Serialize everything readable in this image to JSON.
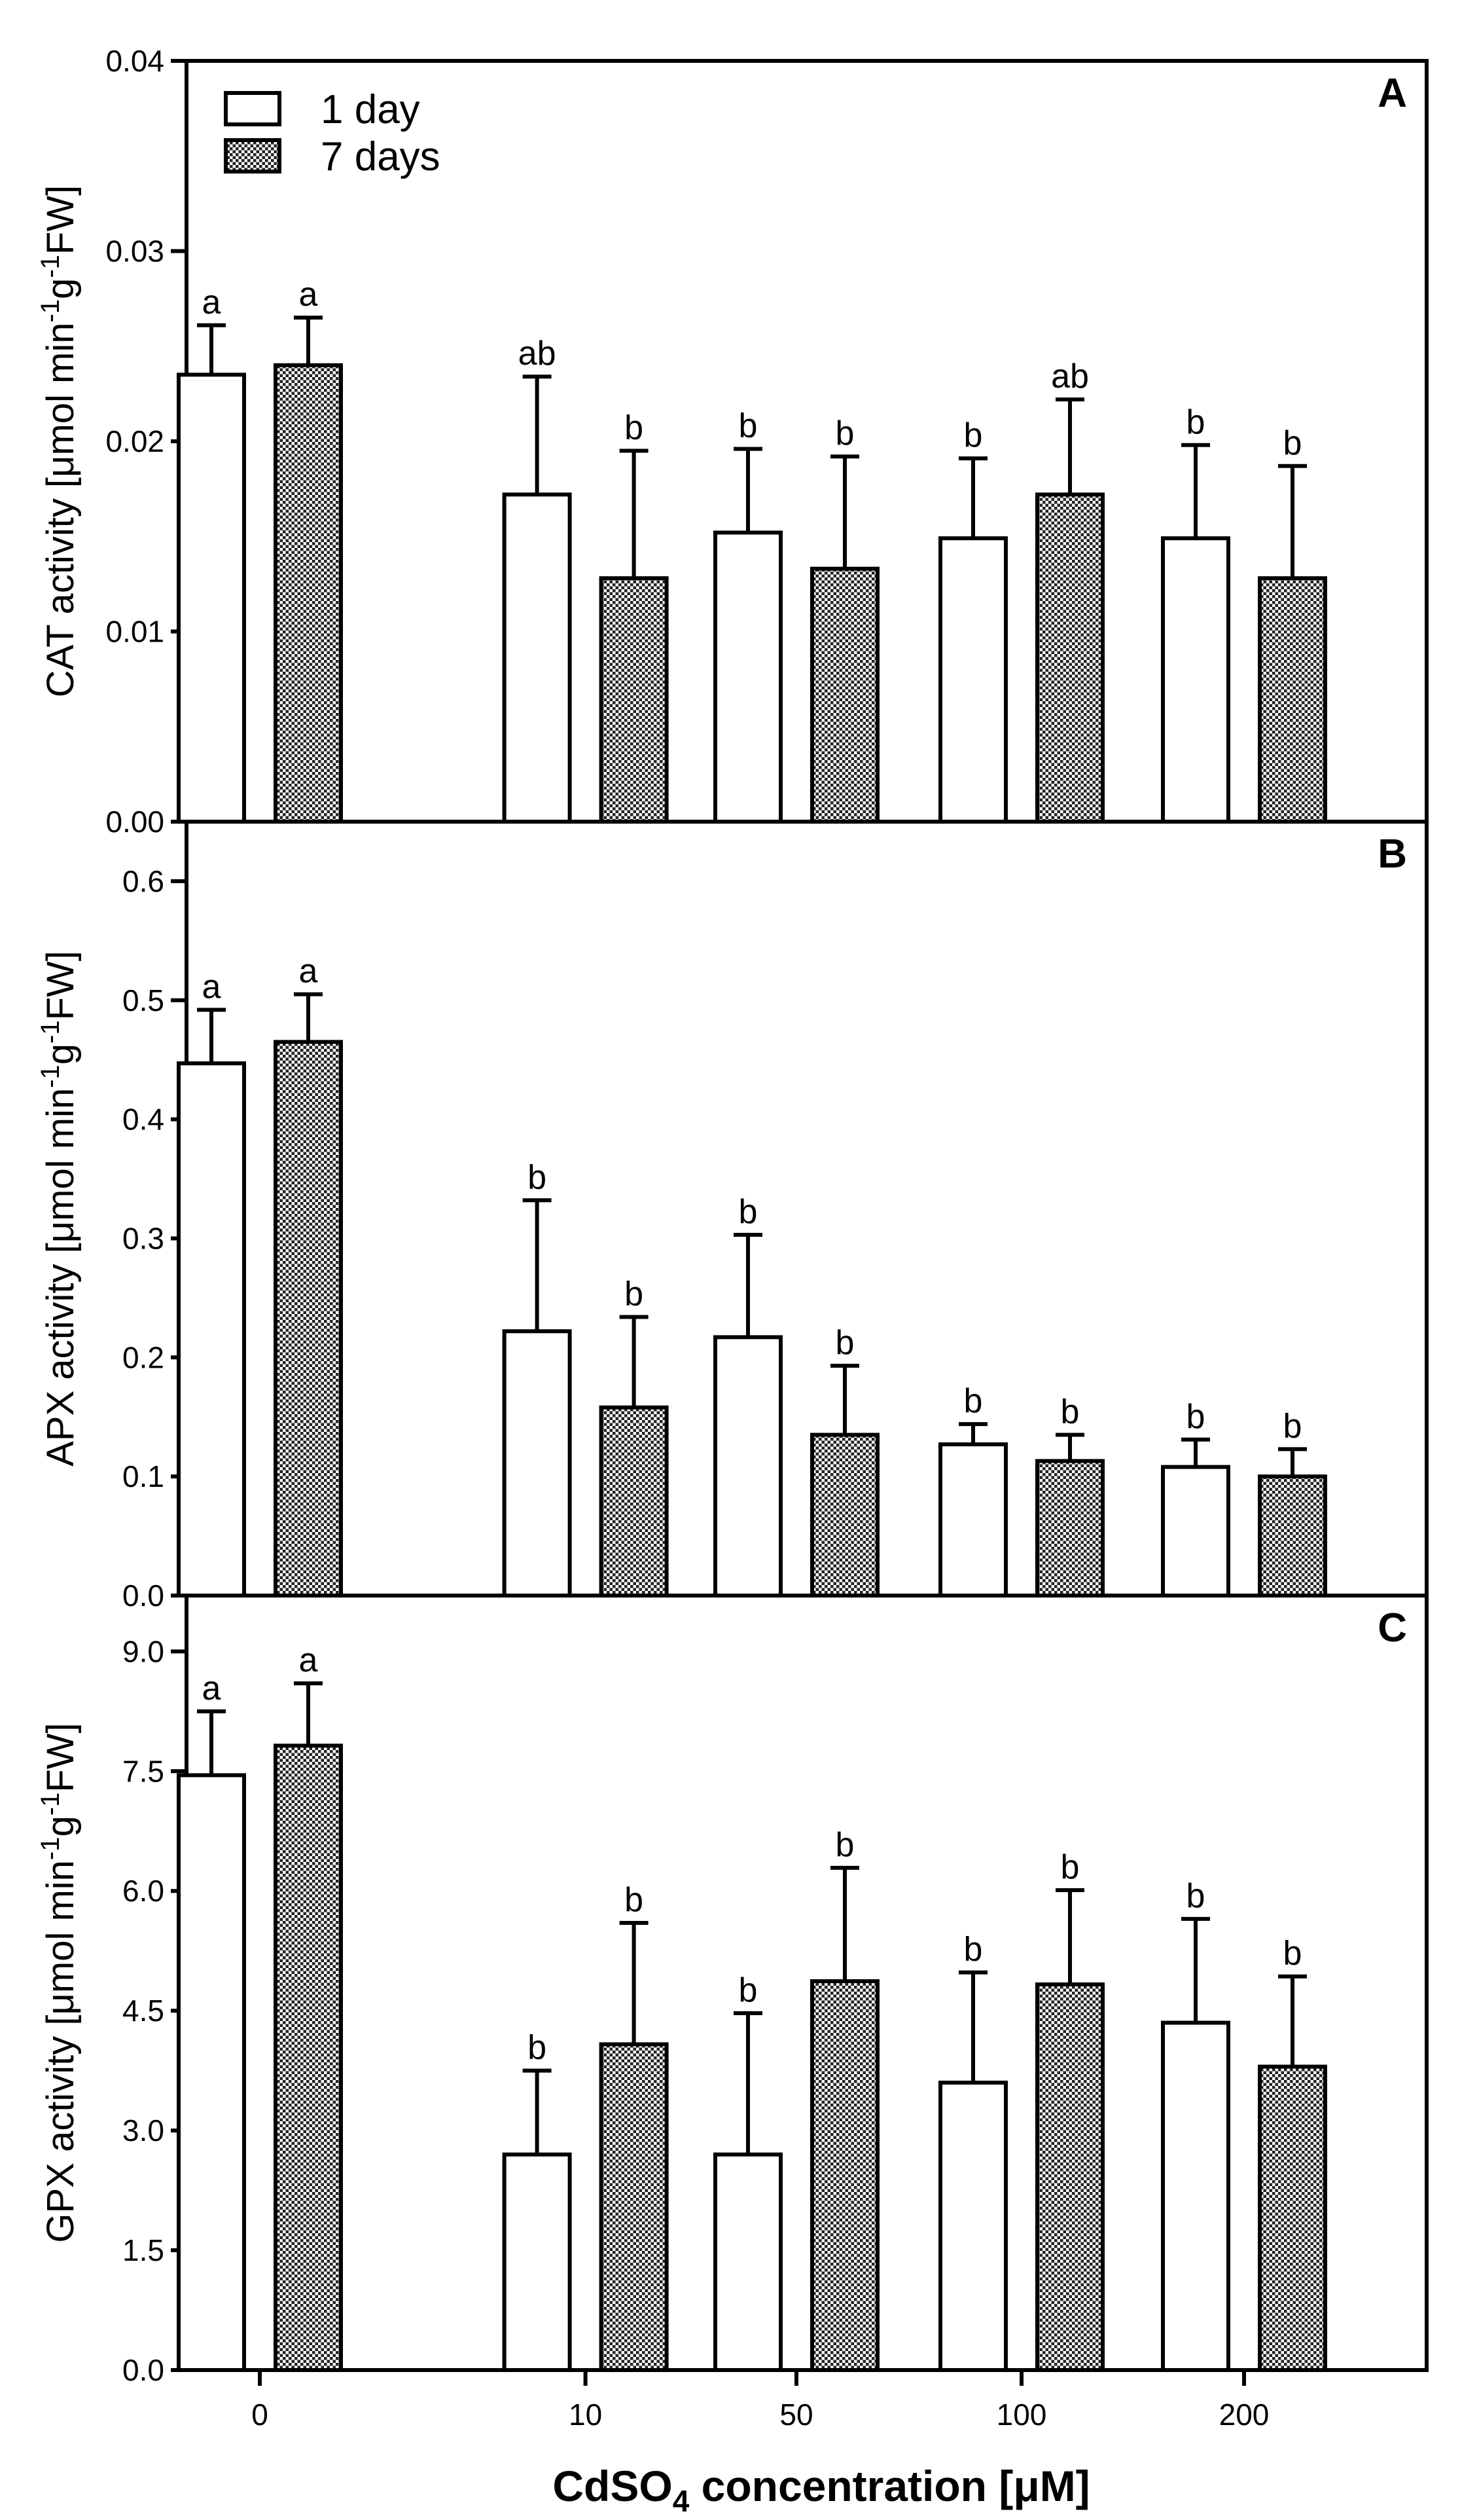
{
  "chart_data": {
    "type": "bar",
    "categories": [
      "0",
      "10",
      "50",
      "100",
      "200"
    ],
    "xlabel": "CdSO₄ concentration [μM]",
    "xlabel_parts": {
      "prefix": "CdSO",
      "sub": "4",
      "suffix": " concentration [μM]"
    },
    "legend": {
      "placement": "top-left",
      "entries": [
        "1 day",
        "7 days"
      ]
    },
    "series_styles": {
      "1 day": "white",
      "7 days": "checkered"
    },
    "grid": false,
    "panels": [
      {
        "letter": "A",
        "ylabel": "CAT activity [μmol min⁻¹g⁻¹FW]",
        "ylabel_parts": {
          "pre": "CAT activity [μmol min",
          "sup1": "-1",
          "mid": "g",
          "sup2": "-1",
          "post": "FW]"
        },
        "ylim": [
          0,
          0.04
        ],
        "yticks": [
          0.0,
          0.01,
          0.02,
          0.03,
          0.04
        ],
        "ytick_labels": [
          "0.00",
          "0.01",
          "0.02",
          "0.03",
          "0.04"
        ],
        "series": [
          {
            "name": "1 day",
            "values": [
              0.0235,
              0.0172,
              0.0152,
              0.0149,
              0.0149
            ],
            "errors": [
              0.0026,
              0.0062,
              0.0044,
              0.0042,
              0.0049
            ],
            "letters": [
              "a",
              "ab",
              "b",
              "b",
              "b"
            ]
          },
          {
            "name": "7 days",
            "values": [
              0.024,
              0.0128,
              0.0133,
              0.0172,
              0.0128
            ],
            "errors": [
              0.0025,
              0.0067,
              0.0059,
              0.005,
              0.0059
            ],
            "letters": [
              "a",
              "b",
              "b",
              "ab",
              "b"
            ]
          }
        ]
      },
      {
        "letter": "B",
        "ylabel": "APX activity [μmol min⁻¹g⁻¹FW]",
        "ylabel_parts": {
          "pre": "APX activity [μmol min",
          "sup1": "-1",
          "mid": "g",
          "sup2": "-1",
          "post": "FW]"
        },
        "ylim": [
          0,
          0.65
        ],
        "yticks": [
          0.0,
          0.1,
          0.2,
          0.3,
          0.4,
          0.5,
          0.6
        ],
        "ytick_labels": [
          "0.0",
          "0.1",
          "0.2",
          "0.3",
          "0.4",
          "0.5",
          "0.6"
        ],
        "series": [
          {
            "name": "1 day",
            "values": [
              0.447,
              0.222,
              0.217,
              0.127,
              0.108
            ],
            "errors": [
              0.045,
              0.11,
              0.086,
              0.017,
              0.023
            ],
            "letters": [
              "a",
              "b",
              "b",
              "b",
              "b"
            ]
          },
          {
            "name": "7 days",
            "values": [
              0.465,
              0.158,
              0.135,
              0.113,
              0.1
            ],
            "errors": [
              0.04,
              0.076,
              0.058,
              0.022,
              0.023
            ],
            "letters": [
              "a",
              "b",
              "b",
              "b",
              "b"
            ]
          }
        ]
      },
      {
        "letter": "C",
        "ylabel": "GPX activity [μmol min⁻¹g⁻¹FW]",
        "ylabel_parts": {
          "pre": "GPX activity [μmol min",
          "sup1": "-1",
          "mid": "g",
          "sup2": "-1",
          "post": "FW]"
        },
        "ylim": [
          0,
          9.7
        ],
        "yticks": [
          0.0,
          1.5,
          3.0,
          4.5,
          6.0,
          7.5,
          9.0
        ],
        "ytick_labels": [
          "0.0",
          "1.5",
          "3.0",
          "4.5",
          "6.0",
          "7.5",
          "9.0"
        ],
        "series": [
          {
            "name": "1 day",
            "values": [
              7.45,
              2.7,
              2.7,
              3.6,
              4.35
            ],
            "errors": [
              0.8,
              1.05,
              1.77,
              1.38,
              1.3
            ],
            "letters": [
              "a",
              "b",
              "b",
              "b",
              "b"
            ]
          },
          {
            "name": "7 days",
            "values": [
              7.82,
              4.08,
              4.87,
              4.83,
              3.8
            ],
            "errors": [
              0.78,
              1.52,
              1.42,
              1.18,
              1.13
            ],
            "letters": [
              "a",
              "b",
              "b",
              "b",
              "b"
            ]
          }
        ]
      }
    ]
  }
}
